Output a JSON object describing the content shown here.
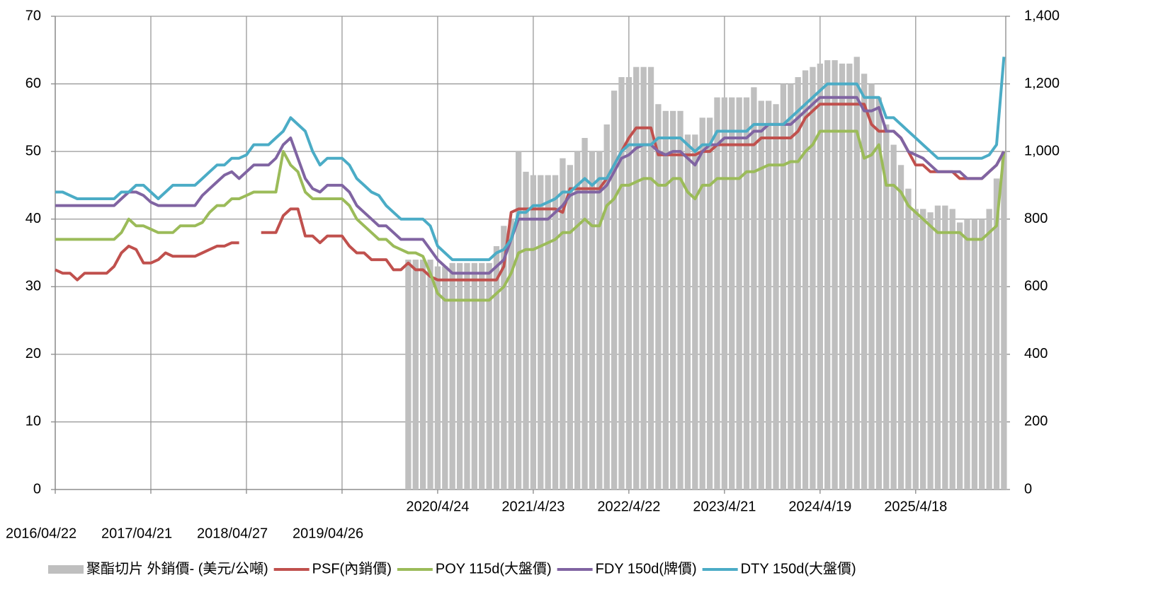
{
  "chart_data": {
    "type": "line",
    "categories": [
      "2016/04/22",
      null,
      null,
      null,
      null,
      null,
      null,
      null,
      null,
      null,
      null,
      null,
      null,
      "2017/04/21",
      null,
      null,
      null,
      null,
      null,
      null,
      null,
      null,
      null,
      null,
      null,
      null,
      "2018/04/27",
      null,
      null,
      null,
      null,
      null,
      null,
      null,
      null,
      null,
      null,
      null,
      null,
      "2019/04/26",
      null,
      null,
      null,
      null,
      null,
      null,
      null,
      null,
      null,
      null,
      null,
      null,
      "2020/4/24",
      null,
      null,
      null,
      null,
      null,
      null,
      null,
      null,
      null,
      null,
      null,
      null,
      "2021/4/23",
      null,
      null,
      null,
      null,
      null,
      null,
      null,
      null,
      null,
      null,
      null,
      null,
      "2022/4/22",
      null,
      null,
      null,
      null,
      null,
      null,
      null,
      null,
      null,
      null,
      null,
      null,
      "2023/4/21",
      null,
      null,
      null,
      null,
      null,
      null,
      null,
      null,
      null,
      null,
      null,
      null,
      "2024/4/19",
      null,
      null,
      null,
      null,
      null,
      null,
      null,
      null,
      null,
      null,
      null,
      null,
      "2025/4/18",
      null,
      null,
      null,
      null,
      null,
      null,
      null,
      null,
      null,
      null,
      null,
      null
    ],
    "series": [
      {
        "name": "聚酯切片 外銷價- (美元/公噸)",
        "type": "bar",
        "axis": "y2",
        "color": "#bfbfbf",
        "values": [
          null,
          null,
          null,
          null,
          null,
          null,
          null,
          null,
          null,
          null,
          null,
          null,
          null,
          null,
          null,
          null,
          null,
          null,
          null,
          null,
          null,
          null,
          null,
          null,
          null,
          null,
          null,
          null,
          null,
          null,
          null,
          null,
          null,
          null,
          null,
          null,
          null,
          null,
          null,
          null,
          null,
          null,
          null,
          null,
          null,
          null,
          null,
          null,
          680,
          680,
          680,
          680,
          660,
          660,
          670,
          670,
          670,
          670,
          670,
          670,
          720,
          780,
          800,
          1000,
          940,
          930,
          930,
          930,
          930,
          980,
          960,
          1000,
          1040,
          1000,
          1000,
          1080,
          1180,
          1220,
          1220,
          1250,
          1250,
          1250,
          1140,
          1120,
          1120,
          1120,
          1050,
          1050,
          1100,
          1100,
          1160,
          1160,
          1160,
          1160,
          1160,
          1190,
          1150,
          1150,
          1140,
          1200,
          1200,
          1220,
          1240,
          1250,
          1260,
          1270,
          1270,
          1260,
          1260,
          1280,
          1230,
          1200,
          1160,
          1080,
          1020,
          960,
          890,
          830,
          830,
          820,
          840,
          840,
          830,
          790,
          800,
          800,
          800,
          830,
          920,
          1000
        ]
      },
      {
        "name": "PSF(內銷價)",
        "color": "#c0504d",
        "values": [
          32.5,
          32,
          32,
          31,
          32,
          32,
          32,
          32,
          33,
          35,
          36,
          35.5,
          33.5,
          33.5,
          34,
          35,
          34.5,
          34.5,
          34.5,
          34.5,
          35,
          35.5,
          36,
          36,
          36.5,
          36.5,
          null,
          null,
          38,
          38,
          38,
          40.5,
          41.5,
          41.5,
          37.5,
          37.5,
          36.5,
          37.5,
          37.5,
          37.5,
          36,
          35,
          35,
          34,
          34,
          34,
          32.5,
          32.5,
          33.5,
          32.5,
          32.5,
          31.5,
          31,
          31,
          31,
          31,
          31,
          31,
          31,
          31,
          31,
          33,
          41,
          41.5,
          41.5,
          41.5,
          41.5,
          41.5,
          41.5,
          41,
          44.5,
          44.5,
          44.5,
          44.5,
          44.5,
          46,
          48,
          50,
          52,
          53.5,
          53.5,
          53.5,
          49.5,
          49.5,
          49.5,
          49.5,
          49.5,
          49.5,
          50,
          50,
          51,
          51,
          51,
          51,
          51,
          51,
          52,
          52,
          52,
          52,
          52,
          53,
          55,
          56,
          57,
          57,
          57,
          57,
          57,
          57,
          57,
          54,
          53,
          53,
          53,
          52,
          50,
          48,
          48,
          47,
          47,
          47,
          47,
          46,
          46,
          46,
          46,
          47,
          48,
          50
        ]
      },
      {
        "name": "POY 115d(大盤價)",
        "color": "#9bbb59",
        "values": [
          37,
          37,
          37,
          37,
          37,
          37,
          37,
          37,
          37,
          38,
          40,
          39,
          39,
          38.5,
          38,
          38,
          38,
          39,
          39,
          39,
          39.5,
          41,
          42,
          42,
          43,
          43,
          43.5,
          44,
          44,
          44,
          44,
          50,
          48,
          47,
          44,
          43,
          43,
          43,
          43,
          43,
          42,
          40,
          39,
          38,
          37,
          37,
          36,
          35.5,
          35,
          35,
          34.5,
          32,
          29,
          28,
          28,
          28,
          28,
          28,
          28,
          28,
          29,
          30,
          32,
          35,
          35.5,
          35.5,
          36,
          36.5,
          37,
          38,
          38,
          39,
          40,
          39,
          39,
          42,
          43,
          45,
          45,
          45.5,
          46,
          46,
          45,
          45,
          46,
          46,
          44,
          43,
          45,
          45,
          46,
          46,
          46,
          46,
          47,
          47,
          47.5,
          48,
          48,
          48,
          48.5,
          48.5,
          50,
          51,
          53,
          53,
          53,
          53,
          53,
          53,
          49,
          49.5,
          51,
          45,
          45,
          44,
          42,
          41,
          40,
          39,
          38,
          38,
          38,
          38,
          37,
          37,
          37,
          38,
          39,
          50
        ]
      },
      {
        "name": "FDY 150d(牌價)",
        "color": "#8064a2",
        "values": [
          42,
          42,
          42,
          42,
          42,
          42,
          42,
          42,
          42,
          43,
          44,
          44,
          43.5,
          42.5,
          42,
          42,
          42,
          42,
          42,
          42,
          43.5,
          44.5,
          45.5,
          46.5,
          47,
          46,
          47,
          48,
          48,
          48,
          49,
          51,
          52,
          49,
          46,
          44.5,
          44,
          45,
          45,
          45,
          44,
          42,
          41,
          40,
          39,
          39,
          38,
          37,
          37,
          37,
          37,
          35.5,
          34,
          33,
          32,
          32,
          32,
          32,
          32,
          32,
          33,
          34,
          37,
          40,
          40,
          40,
          40,
          40,
          41,
          42,
          43.5,
          44,
          44,
          44,
          44,
          45,
          47,
          49,
          49.5,
          50.5,
          51,
          51,
          50,
          49.5,
          50,
          50,
          49,
          48,
          50,
          51,
          51,
          52,
          52,
          52,
          52,
          53,
          53,
          54,
          54,
          54,
          54,
          55,
          56,
          57,
          58,
          58,
          58,
          58,
          58,
          58,
          56,
          56,
          56.5,
          53,
          53,
          52,
          50,
          49.5,
          49,
          48,
          47,
          47,
          47,
          47,
          46,
          46,
          46,
          47,
          48,
          50
        ]
      },
      {
        "name": "DTY 150d(大盤價)",
        "color": "#4bacc6",
        "values": [
          44,
          44,
          43.5,
          43,
          43,
          43,
          43,
          43,
          43,
          44,
          44,
          45,
          45,
          44,
          43,
          44,
          45,
          45,
          45,
          45,
          46,
          47,
          48,
          48,
          49,
          49,
          49.5,
          51,
          51,
          51,
          52,
          53,
          55,
          54,
          53,
          50,
          48,
          49,
          49,
          49,
          48,
          46,
          45,
          44,
          43.5,
          42,
          41,
          40,
          40,
          40,
          40,
          39,
          36,
          35,
          34,
          34,
          34,
          34,
          34,
          34,
          35,
          35.5,
          37,
          41,
          41,
          42,
          42,
          42.5,
          43,
          44,
          44,
          45,
          46,
          45,
          46,
          46,
          48,
          50,
          51,
          51,
          51,
          51,
          52,
          52,
          52,
          52,
          51,
          50,
          51,
          51,
          53,
          53,
          53,
          53,
          53,
          54,
          54,
          54,
          54,
          54,
          55,
          56,
          57,
          58,
          59,
          60,
          60,
          60,
          60,
          60,
          58,
          58,
          58,
          55,
          55,
          54,
          53,
          52,
          51,
          50,
          49,
          49,
          49,
          49,
          49,
          49,
          49,
          49.5,
          51,
          64
        ]
      }
    ],
    "ylim": [
      0,
      70
    ],
    "yticks": [
      0,
      10,
      20,
      30,
      40,
      50,
      60,
      70
    ],
    "y2lim": [
      0,
      1400
    ],
    "y2ticks": [
      0,
      200,
      400,
      600,
      800,
      {
        "value": 1000,
        "label": "1,000"
      },
      {
        "value": 1200,
        "label": "1,200"
      },
      {
        "value": 1400,
        "label": "1,400"
      }
    ],
    "grid": true,
    "legend": "bottom"
  }
}
